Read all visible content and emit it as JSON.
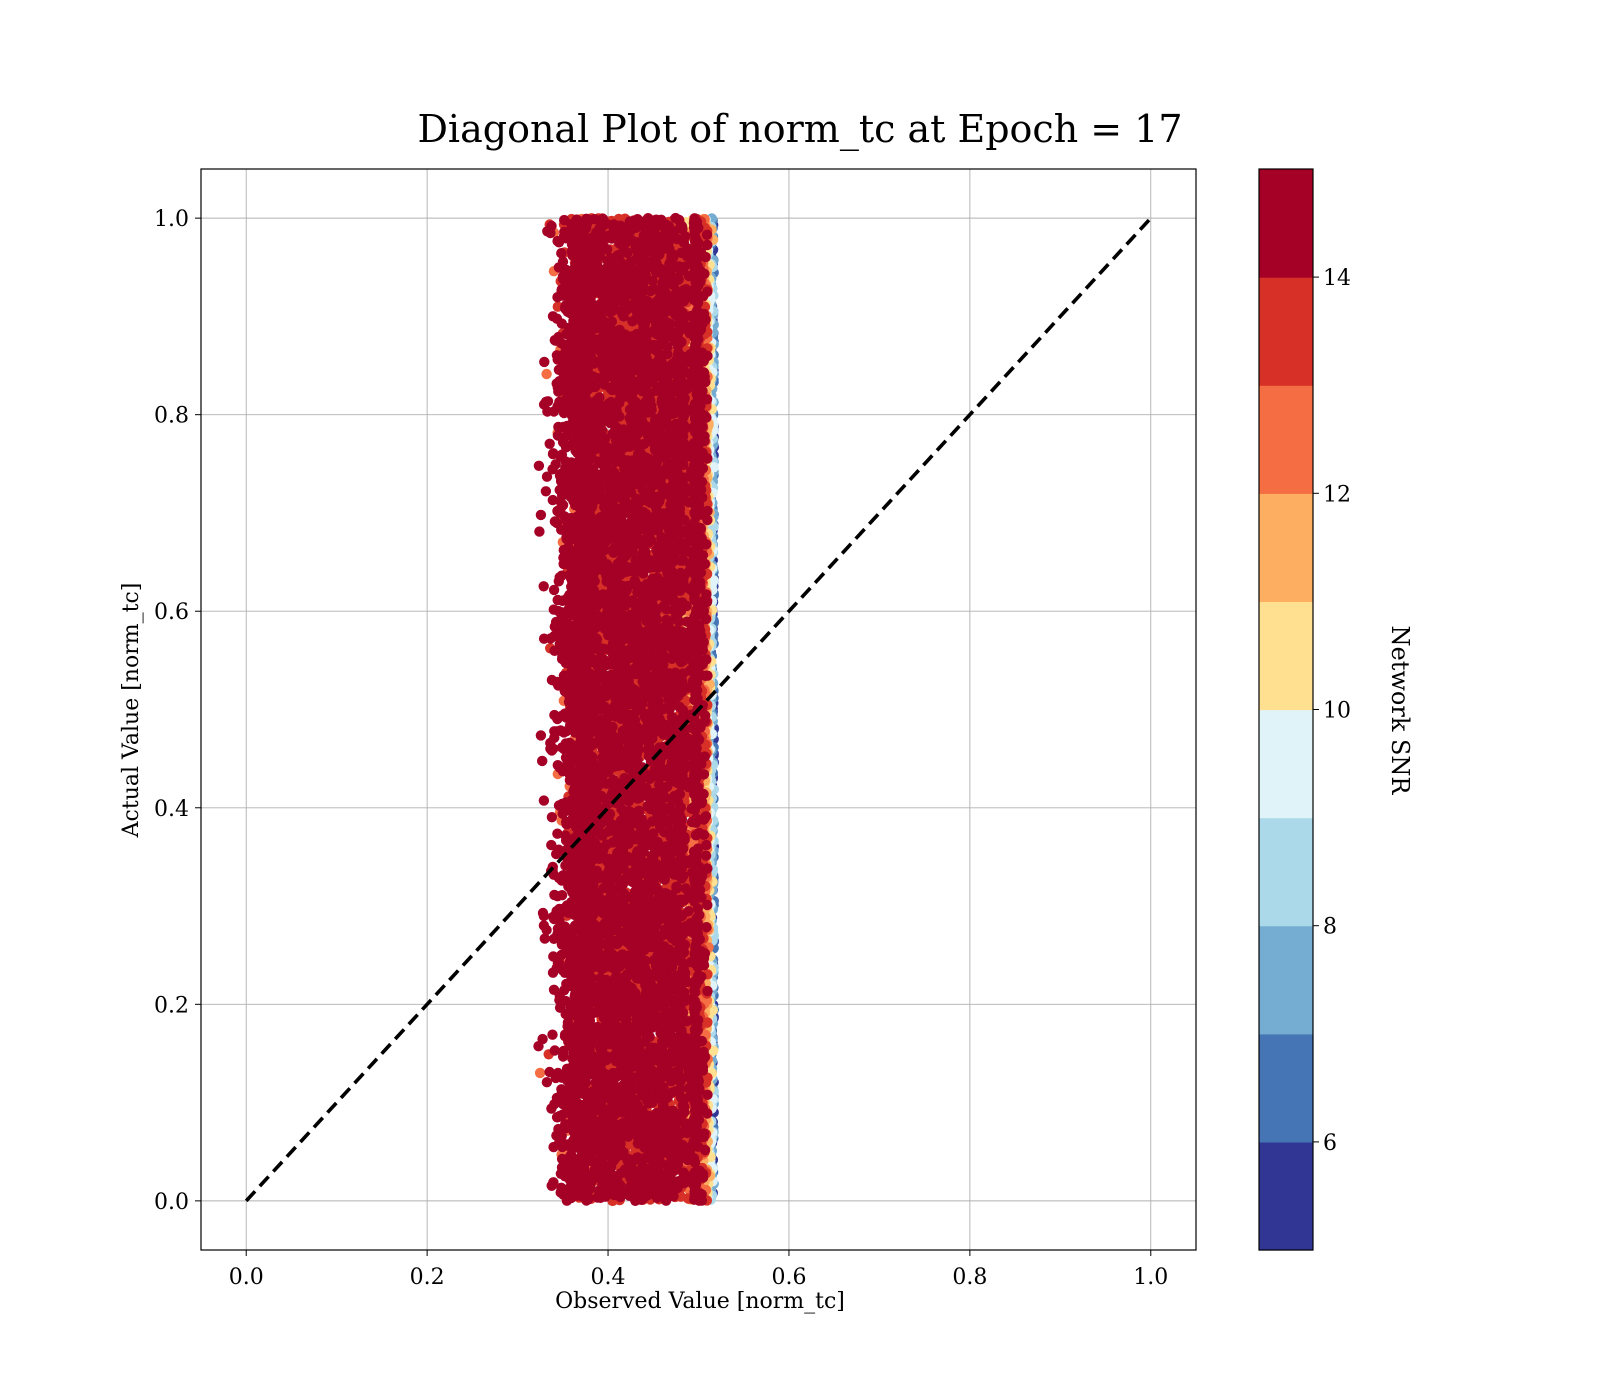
{
  "chart_data": {
    "type": "scatter",
    "title": "Diagonal Plot of norm_tc at Epoch = 17",
    "xlabel": "Observed Value [norm_tc]",
    "ylabel": "Actual Value [norm_tc]",
    "xlim": [
      -0.05,
      1.05
    ],
    "ylim": [
      -0.05,
      1.05
    ],
    "xticks": [
      0.0,
      0.2,
      0.4,
      0.6,
      0.8,
      1.0
    ],
    "xtick_labels": [
      "0.0",
      "0.2",
      "0.4",
      "0.6",
      "0.8",
      "1.0"
    ],
    "yticks": [
      0.0,
      0.2,
      0.4,
      0.6,
      0.8,
      1.0
    ],
    "ytick_labels": [
      "0.0",
      "0.2",
      "0.4",
      "0.6",
      "0.8",
      "1.0"
    ],
    "grid": true,
    "reference_line": {
      "x": [
        0.0,
        1.0
      ],
      "y": [
        0.0,
        1.0
      ],
      "style": "dashed",
      "color": "#000000"
    },
    "point_distribution": {
      "x_range": [
        0.31,
        0.52
      ],
      "x_dense_range": [
        0.38,
        0.5
      ],
      "y_range": [
        0.0,
        1.0
      ],
      "approx_points": 20000,
      "color_trend": "high SNR (dark red) fills x 0.38–0.49; lower SNR (yellow to blue) concentrated at right edge x ≈ 0.50–0.52"
    },
    "colorbar": {
      "label": "Network SNR",
      "vmin": 5,
      "vmax": 15,
      "ticks": [
        6,
        8,
        10,
        12,
        14
      ],
      "tick_labels": [
        "6",
        "8",
        "10",
        "12",
        "14"
      ],
      "colors": [
        "#313695",
        "#4575b4",
        "#74add1",
        "#abd9e9",
        "#e0f3f8",
        "#fee090",
        "#fdae61",
        "#f46d43",
        "#d73027",
        "#a50026"
      ]
    }
  }
}
